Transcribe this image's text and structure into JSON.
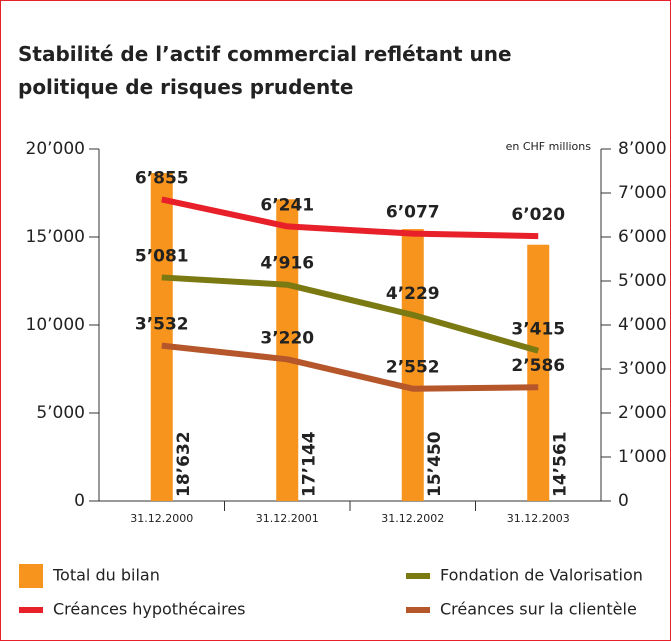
{
  "chart_data": {
    "type": "combo",
    "title": "Stabilité de l’actif commercial reflétant une politique de risques prudente",
    "annotation": "en CHF millions",
    "categories": [
      "31.12.2000",
      "31.12.2001",
      "31.12.2002",
      "31.12.2003"
    ],
    "ylim": [
      0,
      20000
    ],
    "yticks": [
      0,
      {
        "value": 5000,
        "label": "5’000"
      },
      {
        "value": 10000,
        "label": "10’000"
      },
      {
        "value": 15000,
        "label": "15’000"
      },
      {
        "value": 20000,
        "label": "20’000"
      }
    ],
    "y2lim": [
      0,
      8000
    ],
    "y2ticks": [
      0,
      {
        "value": 1000,
        "label": "1’000"
      },
      {
        "value": 2000,
        "label": "2’000"
      },
      {
        "value": 3000,
        "label": "3’000"
      },
      {
        "value": 4000,
        "label": "4’000"
      },
      {
        "value": 5000,
        "label": "5’000"
      },
      {
        "value": 6000,
        "label": "6’000"
      },
      {
        "value": 7000,
        "label": "7’000"
      },
      {
        "value": 8000,
        "label": "8’000"
      }
    ],
    "series": [
      {
        "name": "Total du bilan",
        "type": "bar",
        "color": "#f7941d",
        "values": [
          18632,
          17144,
          15450,
          14561
        ],
        "value_labels": [
          "18’632",
          "17’144",
          "15’450",
          "14’561"
        ]
      },
      {
        "name": "Créances hypothécaires",
        "type": "line",
        "axis": "y2",
        "color": "#e8202a",
        "values": [
          6855,
          6241,
          6077,
          6020
        ],
        "value_labels": [
          "6’855",
          "6’241",
          "6’077",
          "6’020"
        ]
      },
      {
        "name": "Fondation de Valorisation",
        "type": "line",
        "axis": "y2",
        "color": "#7b7a12",
        "values": [
          5081,
          4916,
          4229,
          3415
        ],
        "value_labels": [
          "5’081",
          "4’916",
          "4’229",
          "3’415"
        ]
      },
      {
        "name": "Créances sur la clientèle",
        "type": "line",
        "axis": "y2",
        "color": "#b5562b",
        "values": [
          3532,
          3220,
          2552,
          2586
        ],
        "value_labels": [
          "3’532",
          "3’220",
          "2’552",
          "2’586"
        ]
      }
    ]
  }
}
